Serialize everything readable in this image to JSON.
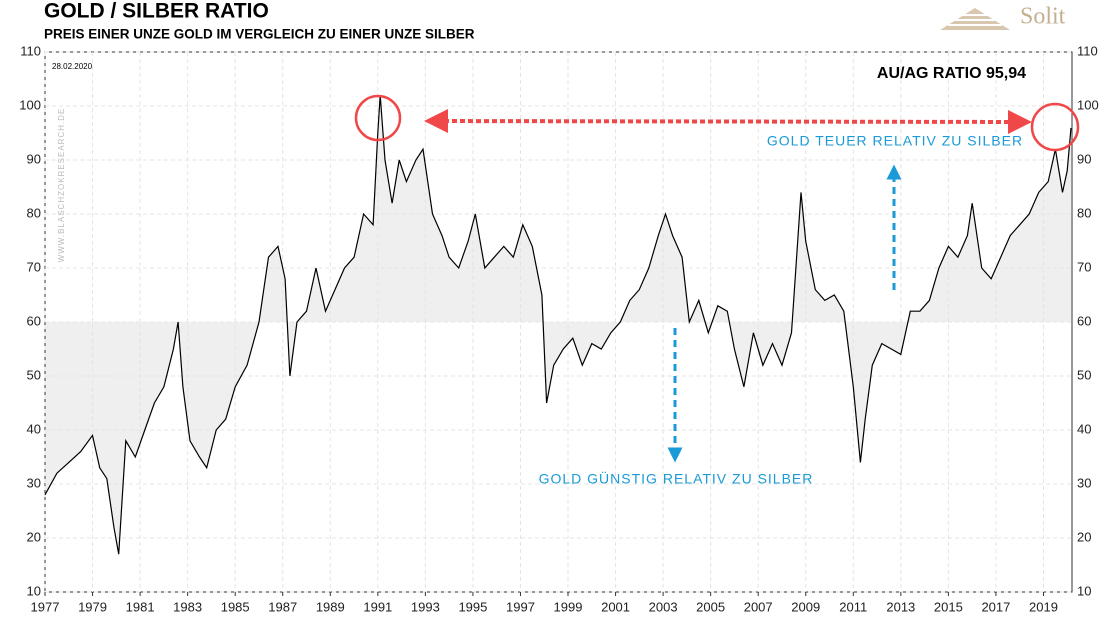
{
  "chart_data": {
    "type": "line",
    "title": "GOLD / SILBER RATIO",
    "subtitle": "PREIS EINER UNZE GOLD IM VERGLEICH ZU EINER UNZE SILBER",
    "date_note": "28.02.2020",
    "ratio_label": "AU/AG RATIO 95,94",
    "annotation_high": "GOLD TEUER RELATIV ZU SILBER",
    "annotation_low": "GOLD GÜNSTIG RELATIV ZU SILBER",
    "watermark": "WWW.BLASCHZOKRESEARCH.DE",
    "logo": "Solit",
    "color": "#000000",
    "fill_color": "#efefef",
    "fill_baseline": 60,
    "grid": true,
    "xlim": [
      1977,
      2020.2
    ],
    "ylim": [
      10,
      110
    ],
    "xticks": [
      1977,
      1979,
      1981,
      1983,
      1985,
      1987,
      1989,
      1991,
      1993,
      1995,
      1997,
      1999,
      2001,
      2003,
      2005,
      2007,
      2009,
      2011,
      2013,
      2015,
      2017,
      2019
    ],
    "yticks": [
      10,
      20,
      30,
      40,
      50,
      60,
      70,
      80,
      90,
      100,
      110
    ],
    "x": [
      1977.0,
      1977.5,
      1978.0,
      1978.5,
      1979.0,
      1979.3,
      1979.6,
      1979.9,
      1980.1,
      1980.4,
      1980.8,
      1981.2,
      1981.6,
      1982.0,
      1982.4,
      1982.6,
      1982.8,
      1983.1,
      1983.5,
      1983.8,
      1984.2,
      1984.6,
      1985.0,
      1985.5,
      1986.0,
      1986.4,
      1986.8,
      1987.1,
      1987.3,
      1987.6,
      1988.0,
      1988.4,
      1988.8,
      1989.2,
      1989.6,
      1990.0,
      1990.4,
      1990.8,
      1991.0,
      1991.1,
      1991.3,
      1991.6,
      1991.9,
      1992.2,
      1992.6,
      1992.9,
      1993.3,
      1993.7,
      1994.0,
      1994.4,
      1994.8,
      1995.1,
      1995.5,
      1995.9,
      1996.3,
      1996.7,
      1997.1,
      1997.5,
      1997.9,
      1998.1,
      1998.4,
      1998.8,
      1999.2,
      1999.6,
      2000.0,
      2000.4,
      2000.8,
      2001.2,
      2001.6,
      2002.0,
      2002.4,
      2002.8,
      2003.1,
      2003.4,
      2003.8,
      2004.1,
      2004.5,
      2004.9,
      2005.3,
      2005.7,
      2006.0,
      2006.4,
      2006.8,
      2007.2,
      2007.6,
      2008.0,
      2008.4,
      2008.8,
      2009.0,
      2009.4,
      2009.8,
      2010.2,
      2010.6,
      2011.0,
      2011.3,
      2011.5,
      2011.8,
      2012.2,
      2012.6,
      2013.0,
      2013.4,
      2013.8,
      2014.2,
      2014.6,
      2015.0,
      2015.4,
      2015.8,
      2016.0,
      2016.4,
      2016.8,
      2017.2,
      2017.6,
      2018.0,
      2018.4,
      2018.8,
      2019.2,
      2019.5,
      2019.8,
      2020.0,
      2020.16
    ],
    "values": [
      28,
      32,
      34,
      36,
      39,
      33,
      31,
      22,
      17,
      38,
      35,
      40,
      45,
      48,
      55,
      60,
      48,
      38,
      35,
      33,
      40,
      42,
      48,
      52,
      60,
      72,
      74,
      68,
      50,
      60,
      62,
      70,
      62,
      66,
      70,
      72,
      80,
      78,
      95,
      102,
      90,
      82,
      90,
      86,
      90,
      92,
      80,
      76,
      72,
      70,
      75,
      80,
      70,
      72,
      74,
      72,
      78,
      74,
      65,
      45,
      52,
      55,
      57,
      52,
      56,
      55,
      58,
      60,
      64,
      66,
      70,
      76,
      80,
      76,
      72,
      60,
      64,
      58,
      63,
      62,
      55,
      48,
      58,
      52,
      56,
      52,
      58,
      84,
      75,
      66,
      64,
      65,
      62,
      48,
      34,
      42,
      52,
      56,
      55,
      54,
      62,
      62,
      64,
      70,
      74,
      72,
      76,
      82,
      70,
      68,
      72,
      76,
      78,
      80,
      84,
      86,
      92,
      84,
      88,
      95.94
    ]
  }
}
